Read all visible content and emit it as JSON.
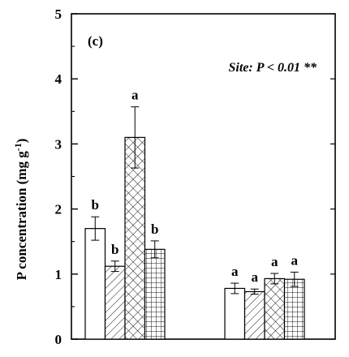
{
  "chart_data": {
    "type": "bar",
    "panel_label": "(c)",
    "annotation": "Site: P < 0.01 **",
    "ylabel": "P concentration (mg g",
    "ylabel_sup": "-1",
    "ylabel_close": ")",
    "xlabel": "",
    "ylim": [
      0,
      5
    ],
    "yticks": [
      "0",
      "1",
      "2",
      "3",
      "4",
      "5"
    ],
    "groups": [
      {
        "bars": [
          {
            "pattern": "open",
            "value": 1.7,
            "error": 0.18,
            "letter": "b"
          },
          {
            "pattern": "hatch",
            "value": 1.12,
            "error": 0.08,
            "letter": "b"
          },
          {
            "pattern": "cross",
            "value": 3.1,
            "error": 0.47,
            "letter": "a"
          },
          {
            "pattern": "grid",
            "value": 1.38,
            "error": 0.13,
            "letter": "b"
          }
        ]
      },
      {
        "bars": [
          {
            "pattern": "open",
            "value": 0.78,
            "error": 0.08,
            "letter": "a"
          },
          {
            "pattern": "hatch",
            "value": 0.73,
            "error": 0.04,
            "letter": "a"
          },
          {
            "pattern": "cross",
            "value": 0.93,
            "error": 0.08,
            "letter": "a"
          },
          {
            "pattern": "grid",
            "value": 0.92,
            "error": 0.11,
            "letter": "a"
          }
        ]
      }
    ]
  }
}
